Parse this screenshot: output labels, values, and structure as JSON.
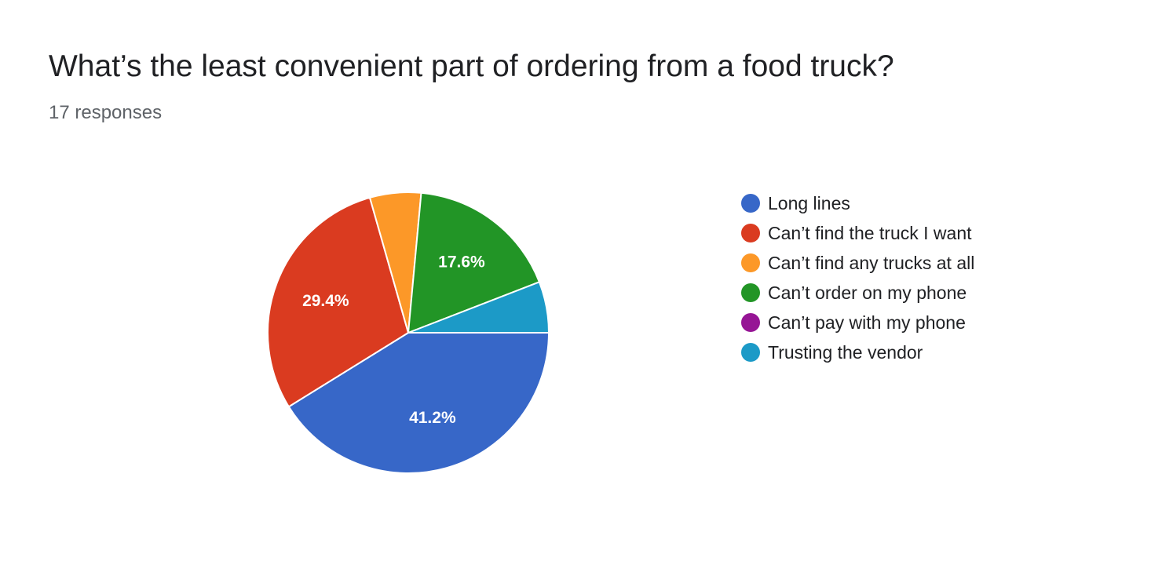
{
  "question": {
    "title": "What’s the least convenient part of ordering from a food truck?",
    "responses_label": "17 responses"
  },
  "chart_data": {
    "type": "pie",
    "title": "What’s the least convenient part of ordering from a food truck?",
    "total_responses": 17,
    "legend_position": "right",
    "slices": [
      {
        "label": "Long lines",
        "count": 7,
        "percent": 41.2,
        "data_label": "41.2%",
        "color": "#3767c8"
      },
      {
        "label": "Can’t find the truck I want",
        "count": 5,
        "percent": 29.4,
        "data_label": "29.4%",
        "color": "#da3b20"
      },
      {
        "label": "Can’t find any trucks at all",
        "count": 1,
        "percent": 5.9,
        "data_label": "",
        "color": "#fc9828"
      },
      {
        "label": "Can’t order on my phone",
        "count": 3,
        "percent": 17.6,
        "data_label": "17.6%",
        "color": "#229526"
      },
      {
        "label": "Can’t pay with my phone",
        "count": 0,
        "percent": 0,
        "data_label": "",
        "color": "#961595"
      },
      {
        "label": "Trusting the vendor",
        "count": 1,
        "percent": 5.9,
        "data_label": "",
        "color": "#1c9ac7"
      }
    ]
  }
}
